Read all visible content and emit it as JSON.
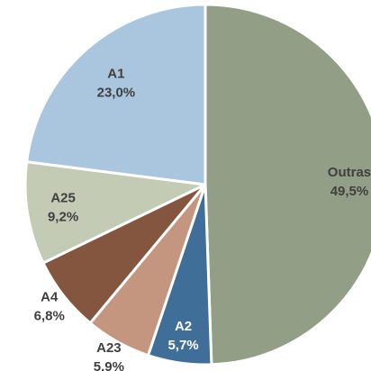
{
  "chart_data": {
    "type": "pie",
    "categories": [
      "Outras",
      "A2",
      "A23",
      "A4",
      "A25",
      "A1"
    ],
    "values": [
      49.5,
      5.7,
      5.9,
      6.8,
      9.2,
      23.0
    ],
    "value_labels": [
      "49,5%",
      "5,7%",
      "5,9%",
      "6,8%",
      "9,2%",
      "23,0%"
    ],
    "colors": [
      "#929f86",
      "#3f6e99",
      "#c4957f",
      "#845640",
      "#c3cbb5",
      "#a9c6de"
    ]
  }
}
